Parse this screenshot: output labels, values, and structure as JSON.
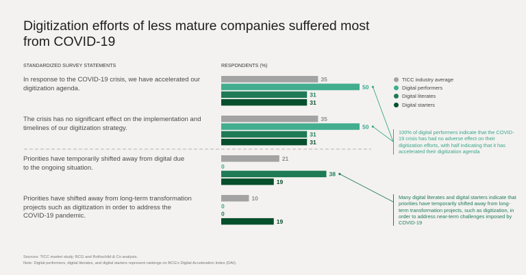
{
  "title": "Digitization efforts of less mature companies suffered most from COVID-19",
  "headers": {
    "statements": "STANDARDIZED SURVEY STATEMENTS",
    "respondents": "RESPONDENTS (%)"
  },
  "legend": [
    {
      "label": "TICC industry average",
      "color": "#a3a3a3"
    },
    {
      "label": "Digital performers",
      "color": "#42ad8f"
    },
    {
      "label": "Digital literates",
      "color": "#1f7a56"
    },
    {
      "label": "Digital starters",
      "color": "#064f2c"
    }
  ],
  "annotations": [
    "100% of digital performers indicate that the COVID-19 crisis has had no adverse effect on their digitization efforts, with half indicating that it has accelerated their digitization agenda",
    "Many digital literates and digital starters indicate that priorities have temporarily shifted away from long-term transformation projects, such as digitization, in order to address near-term challenges imposed by COVID-19"
  ],
  "footnotes": {
    "sources": "Sources: TICC market study; BCG and Rothschild & Co analysis.",
    "note": "Note: Digital performers, digital literates, and digital starters represent rankings on BCG's Digital Acceleration Index (DAI)."
  },
  "chart_data": {
    "type": "bar",
    "orientation": "horizontal",
    "title": "Digitization efforts of less mature companies suffered most from COVID-19",
    "xlabel": "Respondents (%)",
    "ylabel": "Standardized survey statements",
    "categories": [
      "In response to the COVID-19 crisis, we have accelerated our digitization agenda.",
      "The crisis has no significant effect on the implementation and timelines of our digitization strategy.",
      "Priorities have temporarily shifted away from digital due to the ongoing situation.",
      "Priorities have shifted away from long-term transformation projects such as digitization in order to address the COVID-19 pandemic."
    ],
    "series": [
      {
        "name": "TICC industry average",
        "color": "#a3a3a3",
        "label_color": "#8d8d8d",
        "values": [
          35,
          35,
          21,
          10
        ]
      },
      {
        "name": "Digital performers",
        "color": "#42ad8f",
        "label_color": "#3aa58b",
        "values": [
          50,
          50,
          0,
          0
        ]
      },
      {
        "name": "Digital literates",
        "color": "#1f7a56",
        "label_color": "#1e7b58",
        "values": [
          31,
          31,
          38,
          0
        ]
      },
      {
        "name": "Digital starters",
        "color": "#064f2c",
        "label_color": "#0b4a2c",
        "values": [
          31,
          31,
          19,
          19
        ]
      }
    ],
    "xlim": [
      0,
      50
    ],
    "grid": false,
    "legend_position": "right"
  }
}
